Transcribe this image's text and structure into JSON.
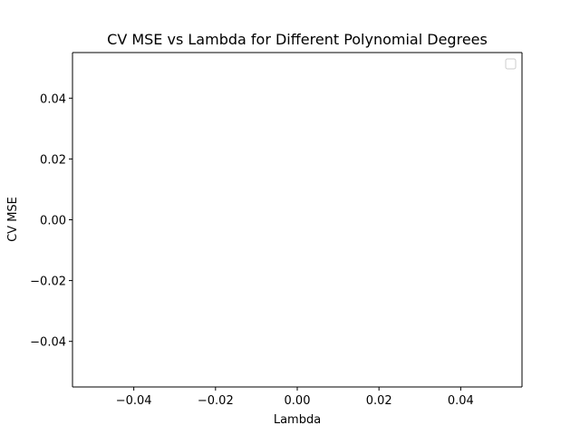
{
  "chart_data": {
    "type": "line",
    "title": "CV MSE vs Lambda for Different Polynomial Degrees",
    "xlabel": "Lambda",
    "ylabel": "CV MSE",
    "xlim": [
      -0.055,
      0.055
    ],
    "ylim": [
      -0.055,
      0.055
    ],
    "x_ticks": [
      -0.04,
      -0.02,
      0.0,
      0.02,
      0.04
    ],
    "x_tick_labels": [
      "−0.04",
      "−0.02",
      "0.00",
      "0.02",
      "0.04"
    ],
    "y_ticks": [
      -0.04,
      -0.02,
      0.0,
      0.02,
      0.04
    ],
    "y_tick_labels": [
      "−0.04",
      "−0.02",
      "0.00",
      "0.02",
      "0.04"
    ],
    "series": [],
    "legend": {
      "position": "top-right",
      "entries": []
    },
    "grid": false
  }
}
